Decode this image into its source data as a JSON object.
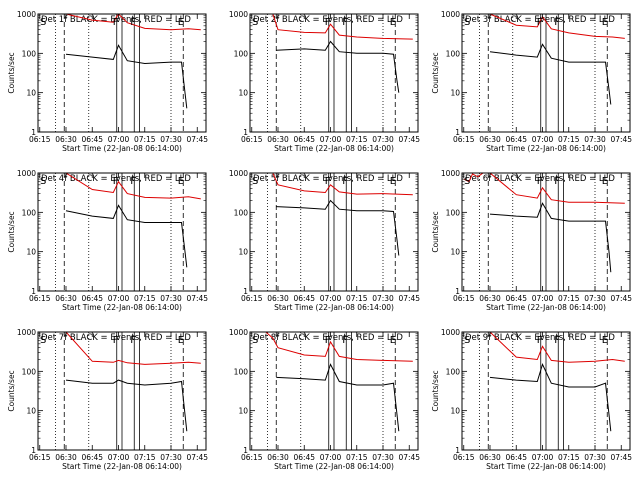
{
  "chart_data": [
    {
      "type": "line",
      "title": "Det 1f  BLACK = Events, RED = LLD",
      "xlabel": "Start Time (22-Jan-08 06:14:00)",
      "ylabel": "Counts/sec",
      "y_scale": "log",
      "ylim": [
        1,
        1000
      ],
      "y_tick_labels": [
        "1",
        "10",
        "100",
        "1000"
      ],
      "x_tick_labels": [
        "06:15",
        "06:30",
        "06:45",
        "07:00",
        "07:15",
        "07:30",
        "07:45"
      ],
      "x_ticks": [
        "06:15",
        "06:30",
        "06:45",
        "07:00",
        "07:15",
        "07:30",
        "07:45"
      ],
      "xlim": [
        "06:14",
        "07:50"
      ],
      "markers": {
        "S": "06:14",
        "F": [
          "06:59",
          "07:09"
        ],
        "E": "07:35"
      },
      "vlines_solid": [
        "06:59",
        "07:02",
        "07:09",
        "07:12"
      ],
      "vlines_dotted": [
        "06:24",
        "06:43",
        "07:30"
      ],
      "vlines_dashed": [
        "06:29",
        "07:37"
      ],
      "series": [
        {
          "name": "LLD",
          "color": "#dd0000",
          "x": [
            "06:20",
            "06:30",
            "06:45",
            "06:57",
            "07:00",
            "07:05",
            "07:15",
            "07:30",
            "07:40",
            "07:47"
          ],
          "values": [
            1000,
            1000,
            700,
            620,
            1000,
            600,
            430,
            400,
            420,
            400
          ]
        },
        {
          "name": "Events",
          "color": "#000000",
          "x": [
            "06:30",
            "06:45",
            "06:57",
            "07:00",
            "07:05",
            "07:15",
            "07:30",
            "07:36",
            "07:38",
            "07:39"
          ],
          "values": [
            95,
            80,
            70,
            160,
            65,
            55,
            60,
            60,
            10,
            4
          ]
        }
      ]
    },
    {
      "type": "line",
      "title": "Det 2f  BLACK = Events, RED = LLD",
      "xlabel": "Start Time (22-Jan-08 06:14:00)",
      "ylabel": "",
      "y_scale": "log",
      "ylim": [
        1,
        1000
      ],
      "y_tick_labels": [
        "1",
        "10",
        "100",
        "1000"
      ],
      "x_tick_labels": [
        "06:15",
        "06:30",
        "06:45",
        "07:00",
        "07:15",
        "07:30",
        "07:45"
      ],
      "x_ticks": [
        "06:15",
        "06:30",
        "06:45",
        "07:00",
        "07:15",
        "07:30",
        "07:45"
      ],
      "xlim": [
        "06:14",
        "07:50"
      ],
      "markers": {
        "S": "06:14",
        "F": [
          "06:59",
          "07:09"
        ],
        "E": "07:35"
      },
      "vlines_solid": [
        "06:59",
        "07:02",
        "07:09",
        "07:12"
      ],
      "vlines_dotted": [
        "06:24",
        "06:43",
        "07:30"
      ],
      "vlines_dashed": [
        "06:29",
        "07:37"
      ],
      "series": [
        {
          "name": "LLD",
          "color": "#dd0000",
          "x": [
            "06:17",
            "06:24",
            "06:27",
            "06:30",
            "06:45",
            "06:57",
            "07:00",
            "07:05",
            "07:15",
            "07:30",
            "07:47"
          ],
          "values": [
            1000,
            1000,
            1000,
            400,
            340,
            330,
            550,
            290,
            260,
            240,
            230
          ]
        },
        {
          "name": "Events",
          "color": "#000000",
          "x": [
            "06:29",
            "06:45",
            "06:57",
            "07:00",
            "07:05",
            "07:15",
            "07:30",
            "07:36",
            "07:38",
            "07:39"
          ],
          "values": [
            120,
            130,
            120,
            200,
            110,
            100,
            100,
            95,
            20,
            10
          ]
        }
      ]
    },
    {
      "type": "line",
      "title": "Det 3f  BLACK = Events, RED = LLD",
      "xlabel": "Start Time (22-Jan-08 06:14:00)",
      "ylabel": "Counts/sec",
      "y_scale": "log",
      "ylim": [
        1,
        1000
      ],
      "y_tick_labels": [
        "1",
        "10",
        "100",
        "1000"
      ],
      "x_tick_labels": [
        "06:15",
        "06:30",
        "06:45",
        "07:00",
        "07:15",
        "07:30",
        "07:45"
      ],
      "x_ticks": [
        "06:15",
        "06:30",
        "06:45",
        "07:00",
        "07:15",
        "07:30",
        "07:45"
      ],
      "xlim": [
        "06:14",
        "07:50"
      ],
      "markers": {
        "S": "06:14",
        "F": [
          "06:59",
          "07:09"
        ],
        "E": "07:35"
      },
      "vlines_solid": [
        "06:59",
        "07:02",
        "07:09",
        "07:12"
      ],
      "vlines_dotted": [
        "06:24",
        "06:43",
        "07:30"
      ],
      "vlines_dashed": [
        "06:29",
        "07:37"
      ],
      "series": [
        {
          "name": "LLD",
          "color": "#dd0000",
          "x": [
            "06:20",
            "06:30",
            "06:45",
            "06:57",
            "07:00",
            "07:05",
            "07:15",
            "07:30",
            "07:40",
            "07:47"
          ],
          "values": [
            1000,
            1000,
            520,
            470,
            850,
            420,
            330,
            270,
            260,
            240
          ]
        },
        {
          "name": "Events",
          "color": "#000000",
          "x": [
            "06:30",
            "06:45",
            "06:57",
            "07:00",
            "07:05",
            "07:15",
            "07:30",
            "07:36",
            "07:38",
            "07:39"
          ],
          "values": [
            110,
            90,
            80,
            170,
            75,
            60,
            60,
            60,
            12,
            5
          ]
        }
      ]
    },
    {
      "type": "line",
      "title": "Det 4f  BLACK = Events, RED = LLD",
      "xlabel": "Start Time (22-Jan-08 06:14:00)",
      "ylabel": "Counts/sec",
      "y_scale": "log",
      "ylim": [
        1,
        1000
      ],
      "y_tick_labels": [
        "1",
        "10",
        "100",
        "1000"
      ],
      "x_tick_labels": [
        "06:15",
        "06:30",
        "06:45",
        "07:00",
        "07:15",
        "07:30",
        "07:45"
      ],
      "x_ticks": [
        "06:15",
        "06:30",
        "06:45",
        "07:00",
        "07:15",
        "07:30",
        "07:45"
      ],
      "xlim": [
        "06:14",
        "07:50"
      ],
      "markers": {
        "S": "06:14",
        "F": [
          "06:59",
          "07:09"
        ],
        "E": "07:35"
      },
      "vlines_solid": [
        "06:59",
        "07:02",
        "07:09",
        "07:12"
      ],
      "vlines_dotted": [
        "06:24",
        "06:43",
        "07:30"
      ],
      "vlines_dashed": [
        "06:29",
        "07:37"
      ],
      "series": [
        {
          "name": "LLD",
          "color": "#dd0000",
          "x": [
            "06:20",
            "06:30",
            "06:45",
            "06:57",
            "07:00",
            "07:05",
            "07:15",
            "07:30",
            "07:40",
            "07:47"
          ],
          "values": [
            1000,
            1000,
            380,
            320,
            600,
            300,
            240,
            230,
            250,
            220
          ]
        },
        {
          "name": "Events",
          "color": "#000000",
          "x": [
            "06:30",
            "06:45",
            "06:57",
            "07:00",
            "07:05",
            "07:15",
            "07:30",
            "07:36",
            "07:38",
            "07:39"
          ],
          "values": [
            110,
            80,
            70,
            150,
            65,
            55,
            55,
            55,
            10,
            4
          ]
        }
      ]
    },
    {
      "type": "line",
      "title": "Det 5f  BLACK = Events, RED = LLD",
      "xlabel": "Start Time (22-Jan-08 06:14:00)",
      "ylabel": "",
      "y_scale": "log",
      "ylim": [
        1,
        1000
      ],
      "y_tick_labels": [
        "1",
        "10",
        "100",
        "1000"
      ],
      "x_tick_labels": [
        "06:15",
        "06:30",
        "06:45",
        "07:00",
        "07:15",
        "07:30",
        "07:45"
      ],
      "x_ticks": [
        "06:15",
        "06:30",
        "06:45",
        "07:00",
        "07:15",
        "07:30",
        "07:45"
      ],
      "xlim": [
        "06:14",
        "07:50"
      ],
      "markers": {
        "S": "06:14",
        "F": [
          "06:59",
          "07:09"
        ],
        "E": "07:35"
      },
      "vlines_solid": [
        "06:59",
        "07:02",
        "07:09",
        "07:12"
      ],
      "vlines_dotted": [
        "06:24",
        "06:43",
        "07:30"
      ],
      "vlines_dashed": [
        "06:29",
        "07:37"
      ],
      "series": [
        {
          "name": "LLD",
          "color": "#dd0000",
          "x": [
            "06:17",
            "06:24",
            "06:27",
            "06:30",
            "06:45",
            "06:57",
            "07:00",
            "07:05",
            "07:15",
            "07:30",
            "07:47"
          ],
          "values": [
            1000,
            1000,
            1000,
            500,
            350,
            320,
            500,
            330,
            290,
            300,
            280
          ]
        },
        {
          "name": "Events",
          "color": "#000000",
          "x": [
            "06:29",
            "06:45",
            "06:57",
            "07:00",
            "07:05",
            "07:15",
            "07:30",
            "07:36",
            "07:38",
            "07:39"
          ],
          "values": [
            140,
            130,
            120,
            200,
            120,
            110,
            110,
            105,
            20,
            8
          ]
        }
      ]
    },
    {
      "type": "line",
      "title": "Det 6f  BLACK = Events, RED = LLD",
      "xlabel": "Start Time (22-Jan-08 06:14:00)",
      "ylabel": "Counts/sec",
      "y_scale": "log",
      "ylim": [
        1,
        1000
      ],
      "y_tick_labels": [
        "1",
        "10",
        "100",
        "1000"
      ],
      "x_tick_labels": [
        "06:15",
        "06:30",
        "06:45",
        "07:00",
        "07:15",
        "07:30",
        "07:45"
      ],
      "x_ticks": [
        "06:15",
        "06:30",
        "06:45",
        "07:00",
        "07:15",
        "07:30",
        "07:45"
      ],
      "xlim": [
        "06:14",
        "07:50"
      ],
      "markers": {
        "S": "06:14",
        "F": [
          "06:59",
          "07:09"
        ],
        "E": "07:35"
      },
      "vlines_solid": [
        "06:59",
        "07:02",
        "07:09",
        "07:12"
      ],
      "vlines_dotted": [
        "06:24",
        "06:43",
        "07:30"
      ],
      "vlines_dashed": [
        "06:29",
        "07:37"
      ],
      "series": [
        {
          "name": "LLD",
          "color": "#dd0000",
          "x": [
            "06:15",
            "06:18",
            "06:20",
            "06:23",
            "06:26",
            "06:30",
            "06:45",
            "06:57",
            "07:00",
            "07:05",
            "07:15",
            "07:30",
            "07:47"
          ],
          "values": [
            700,
            600,
            950,
            800,
            1000,
            1000,
            280,
            230,
            420,
            210,
            180,
            180,
            170
          ]
        },
        {
          "name": "Events",
          "color": "#000000",
          "x": [
            "06:30",
            "06:45",
            "06:57",
            "07:00",
            "07:05",
            "07:15",
            "07:30",
            "07:36",
            "07:38",
            "07:39"
          ],
          "values": [
            90,
            80,
            75,
            170,
            70,
            60,
            60,
            60,
            10,
            3
          ]
        }
      ]
    },
    {
      "type": "line",
      "title": "Det 7f  BLACK = Events, RED = LLD",
      "xlabel": "Start Time (22-Jan-08 06:14:00)",
      "ylabel": "Counts/sec",
      "y_scale": "log",
      "ylim": [
        1,
        1000
      ],
      "y_tick_labels": [
        "1",
        "10",
        "100",
        "1000"
      ],
      "x_tick_labels": [
        "06:15",
        "06:30",
        "06:45",
        "07:00",
        "07:15",
        "07:30",
        "07:45"
      ],
      "x_ticks": [
        "06:15",
        "06:30",
        "06:45",
        "07:00",
        "07:15",
        "07:30",
        "07:45"
      ],
      "xlim": [
        "06:14",
        "07:50"
      ],
      "markers": {
        "S": "06:14",
        "F": [
          "06:59",
          "07:09"
        ],
        "E": "07:35"
      },
      "vlines_solid": [
        "06:59",
        "07:02",
        "07:09",
        "07:12"
      ],
      "vlines_dotted": [
        "06:24",
        "06:43",
        "07:30"
      ],
      "vlines_dashed": [
        "06:29",
        "07:37"
      ],
      "series": [
        {
          "name": "LLD",
          "color": "#dd0000",
          "x": [
            "06:20",
            "06:30",
            "06:45",
            "06:57",
            "07:00",
            "07:05",
            "07:15",
            "07:30",
            "07:40",
            "07:47"
          ],
          "values": [
            1000,
            1000,
            180,
            170,
            190,
            165,
            150,
            160,
            170,
            160
          ]
        },
        {
          "name": "Events",
          "color": "#000000",
          "x": [
            "06:30",
            "06:45",
            "06:57",
            "07:00",
            "07:05",
            "07:15",
            "07:30",
            "07:36",
            "07:38",
            "07:39"
          ],
          "values": [
            60,
            50,
            50,
            60,
            50,
            45,
            50,
            55,
            8,
            3
          ]
        }
      ]
    },
    {
      "type": "line",
      "title": "Det 8f  BLACK = Events, RED = LLD",
      "xlabel": "Start Time (22-Jan-08 06:14:00)",
      "ylabel": "",
      "y_scale": "log",
      "ylim": [
        1,
        1000
      ],
      "y_tick_labels": [
        "1",
        "10",
        "100",
        "1000"
      ],
      "x_tick_labels": [
        "06:15",
        "06:30",
        "06:45",
        "07:00",
        "07:15",
        "07:30",
        "07:45"
      ],
      "x_ticks": [
        "06:15",
        "06:30",
        "06:45",
        "07:00",
        "07:15",
        "07:30",
        "07:45"
      ],
      "xlim": [
        "06:14",
        "07:50"
      ],
      "markers": {
        "S": "06:14",
        "F": [
          "06:59",
          "07:09"
        ],
        "E": "07:35"
      },
      "vlines_solid": [
        "06:59",
        "07:02",
        "07:09",
        "07:12"
      ],
      "vlines_dotted": [
        "06:24",
        "06:43",
        "07:30"
      ],
      "vlines_dashed": [
        "06:29",
        "07:37"
      ],
      "series": [
        {
          "name": "LLD",
          "color": "#dd0000",
          "x": [
            "06:18",
            "06:23",
            "06:27",
            "06:30",
            "06:45",
            "06:57",
            "07:00",
            "07:05",
            "07:15",
            "07:30",
            "07:47"
          ],
          "values": [
            1000,
            1000,
            700,
            400,
            260,
            240,
            560,
            240,
            200,
            190,
            180
          ]
        },
        {
          "name": "Events",
          "color": "#000000",
          "x": [
            "06:29",
            "06:45",
            "06:57",
            "07:00",
            "07:05",
            "07:15",
            "07:30",
            "07:36",
            "07:38",
            "07:39"
          ],
          "values": [
            70,
            65,
            60,
            150,
            55,
            45,
            45,
            50,
            8,
            3
          ]
        }
      ]
    },
    {
      "type": "line",
      "title": "Det 9f  BLACK = Events, RED = LLD",
      "xlabel": "Start Time (22-Jan-08 06:14:00)",
      "ylabel": "Counts/sec",
      "y_scale": "log",
      "ylim": [
        1,
        1000
      ],
      "y_tick_labels": [
        "1",
        "10",
        "100",
        "1000"
      ],
      "x_tick_labels": [
        "06:15",
        "06:30",
        "06:45",
        "07:00",
        "07:15",
        "07:30",
        "07:45"
      ],
      "x_ticks": [
        "06:15",
        "06:30",
        "06:45",
        "07:00",
        "07:15",
        "07:30",
        "07:45"
      ],
      "xlim": [
        "06:14",
        "07:50"
      ],
      "markers": {
        "S": "06:14",
        "F": [
          "06:59",
          "07:09"
        ],
        "E": "07:35"
      },
      "vlines_solid": [
        "06:59",
        "07:02",
        "07:09",
        "07:12"
      ],
      "vlines_dotted": [
        "06:24",
        "06:43",
        "07:30"
      ],
      "vlines_dashed": [
        "06:29",
        "07:37"
      ],
      "series": [
        {
          "name": "LLD",
          "color": "#dd0000",
          "x": [
            "06:20",
            "06:30",
            "06:45",
            "06:57",
            "07:00",
            "07:05",
            "07:15",
            "07:30",
            "07:40",
            "07:47"
          ],
          "values": [
            1000,
            1000,
            230,
            200,
            430,
            190,
            170,
            180,
            200,
            180
          ]
        },
        {
          "name": "Events",
          "color": "#000000",
          "x": [
            "06:30",
            "06:45",
            "06:57",
            "07:00",
            "07:05",
            "07:15",
            "07:30",
            "07:36",
            "07:38",
            "07:39"
          ],
          "values": [
            70,
            60,
            55,
            150,
            50,
            40,
            40,
            50,
            8,
            3
          ]
        }
      ]
    }
  ]
}
